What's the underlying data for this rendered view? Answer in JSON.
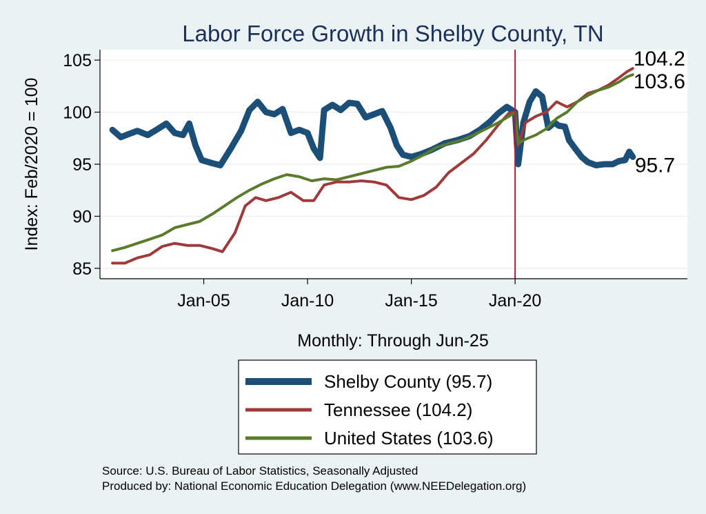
{
  "chart_data": {
    "type": "line",
    "title": "Labor Force Growth in Shelby  County, TN",
    "ylabel": "Index: Feb/2020 = 100",
    "xlabel": "Monthly: Through Jun-25",
    "ylim": [
      84,
      106
    ],
    "yticks": [
      85,
      90,
      95,
      100,
      105
    ],
    "xlim": [
      2000.0,
      2028.3
    ],
    "xticks": [
      {
        "label": "Jan-05",
        "x": 2005.0
      },
      {
        "label": "Jan-10",
        "x": 2010.0
      },
      {
        "label": "Jan-15",
        "x": 2015.0
      },
      {
        "label": "Jan-20",
        "x": 2020.0
      }
    ],
    "reference_line": {
      "x": 2020.0,
      "color": "#c0143c"
    },
    "grid": true,
    "legend_position": "bottom",
    "series": [
      {
        "name": "Shelby  County (95.7)",
        "color": "#1c4f78",
        "end_label": "95.7",
        "points": [
          [
            2000.6,
            98.3
          ],
          [
            2001.0,
            97.6
          ],
          [
            2001.4,
            97.9
          ],
          [
            2001.8,
            98.2
          ],
          [
            2002.3,
            97.8
          ],
          [
            2002.8,
            98.4
          ],
          [
            2003.2,
            98.9
          ],
          [
            2003.6,
            98.0
          ],
          [
            2004.0,
            97.8
          ],
          [
            2004.3,
            98.9
          ],
          [
            2004.6,
            96.8
          ],
          [
            2004.9,
            95.4
          ],
          [
            2005.4,
            95.1
          ],
          [
            2005.8,
            94.9
          ],
          [
            2006.3,
            96.5
          ],
          [
            2006.8,
            98.2
          ],
          [
            2007.2,
            100.2
          ],
          [
            2007.6,
            101.0
          ],
          [
            2008.0,
            100.0
          ],
          [
            2008.4,
            99.8
          ],
          [
            2008.8,
            100.3
          ],
          [
            2009.2,
            98.0
          ],
          [
            2009.6,
            98.3
          ],
          [
            2010.0,
            98.0
          ],
          [
            2010.3,
            96.5
          ],
          [
            2010.6,
            95.6
          ],
          [
            2010.8,
            100.2
          ],
          [
            2011.2,
            100.7
          ],
          [
            2011.6,
            100.2
          ],
          [
            2012.0,
            100.9
          ],
          [
            2012.4,
            100.8
          ],
          [
            2012.8,
            99.5
          ],
          [
            2013.2,
            99.8
          ],
          [
            2013.6,
            100.1
          ],
          [
            2014.0,
            98.5
          ],
          [
            2014.3,
            96.8
          ],
          [
            2014.6,
            95.9
          ],
          [
            2015.0,
            95.7
          ],
          [
            2015.5,
            96.0
          ],
          [
            2016.0,
            96.4
          ],
          [
            2016.6,
            97.0
          ],
          [
            2017.2,
            97.3
          ],
          [
            2017.8,
            97.7
          ],
          [
            2018.3,
            98.3
          ],
          [
            2018.8,
            99.1
          ],
          [
            2019.2,
            99.9
          ],
          [
            2019.6,
            100.5
          ],
          [
            2020.0,
            100.0
          ],
          [
            2020.15,
            95.0
          ],
          [
            2020.4,
            99.0
          ],
          [
            2020.7,
            101.0
          ],
          [
            2021.0,
            102.0
          ],
          [
            2021.3,
            101.5
          ],
          [
            2021.6,
            98.5
          ],
          [
            2021.9,
            99.0
          ],
          [
            2022.1,
            98.7
          ],
          [
            2022.4,
            98.6
          ],
          [
            2022.6,
            97.3
          ],
          [
            2022.9,
            96.5
          ],
          [
            2023.2,
            95.7
          ],
          [
            2023.5,
            95.2
          ],
          [
            2023.9,
            94.9
          ],
          [
            2024.3,
            95.0
          ],
          [
            2024.7,
            95.0
          ],
          [
            2025.0,
            95.3
          ],
          [
            2025.3,
            95.4
          ],
          [
            2025.5,
            96.2
          ],
          [
            2025.67,
            95.7
          ]
        ]
      },
      {
        "name": "Tennessee (104.2)",
        "color": "#a03a3a",
        "end_label": "104.2",
        "points": [
          [
            2000.6,
            85.5
          ],
          [
            2001.2,
            85.5
          ],
          [
            2001.8,
            86.0
          ],
          [
            2002.4,
            86.3
          ],
          [
            2003.0,
            87.1
          ],
          [
            2003.6,
            87.4
          ],
          [
            2004.2,
            87.2
          ],
          [
            2004.8,
            87.2
          ],
          [
            2005.4,
            86.9
          ],
          [
            2005.9,
            86.6
          ],
          [
            2006.5,
            88.4
          ],
          [
            2007.0,
            91.0
          ],
          [
            2007.5,
            91.8
          ],
          [
            2008.0,
            91.5
          ],
          [
            2008.6,
            91.8
          ],
          [
            2009.2,
            92.3
          ],
          [
            2009.8,
            91.5
          ],
          [
            2010.3,
            91.5
          ],
          [
            2010.8,
            93.0
          ],
          [
            2011.4,
            93.3
          ],
          [
            2012.0,
            93.3
          ],
          [
            2012.6,
            93.4
          ],
          [
            2013.2,
            93.3
          ],
          [
            2013.8,
            93.0
          ],
          [
            2014.4,
            91.8
          ],
          [
            2015.0,
            91.6
          ],
          [
            2015.6,
            92.0
          ],
          [
            2016.2,
            92.8
          ],
          [
            2016.8,
            94.2
          ],
          [
            2017.4,
            95.1
          ],
          [
            2018.0,
            96.0
          ],
          [
            2018.6,
            97.3
          ],
          [
            2019.2,
            98.8
          ],
          [
            2019.7,
            99.9
          ],
          [
            2020.0,
            100.0
          ],
          [
            2020.15,
            96.8
          ],
          [
            2020.5,
            99.0
          ],
          [
            2021.0,
            99.6
          ],
          [
            2021.5,
            100.0
          ],
          [
            2022.0,
            101.0
          ],
          [
            2022.5,
            100.5
          ],
          [
            2023.0,
            101.0
          ],
          [
            2023.5,
            101.8
          ],
          [
            2024.0,
            102.1
          ],
          [
            2024.5,
            102.6
          ],
          [
            2025.0,
            103.3
          ],
          [
            2025.4,
            103.9
          ],
          [
            2025.67,
            104.2
          ]
        ]
      },
      {
        "name": "United States (103.6)",
        "color": "#5a7a2c",
        "end_label": "103.6",
        "points": [
          [
            2000.6,
            86.7
          ],
          [
            2001.2,
            87.0
          ],
          [
            2001.8,
            87.4
          ],
          [
            2002.4,
            87.8
          ],
          [
            2003.0,
            88.2
          ],
          [
            2003.6,
            88.9
          ],
          [
            2004.2,
            89.2
          ],
          [
            2004.8,
            89.5
          ],
          [
            2005.4,
            90.2
          ],
          [
            2006.0,
            91.0
          ],
          [
            2006.6,
            91.8
          ],
          [
            2007.2,
            92.5
          ],
          [
            2007.8,
            93.1
          ],
          [
            2008.4,
            93.6
          ],
          [
            2009.0,
            94.0
          ],
          [
            2009.6,
            93.8
          ],
          [
            2010.2,
            93.4
          ],
          [
            2010.8,
            93.6
          ],
          [
            2011.4,
            93.5
          ],
          [
            2012.0,
            93.8
          ],
          [
            2012.6,
            94.1
          ],
          [
            2013.2,
            94.4
          ],
          [
            2013.8,
            94.7
          ],
          [
            2014.4,
            94.8
          ],
          [
            2015.0,
            95.3
          ],
          [
            2015.6,
            95.9
          ],
          [
            2016.2,
            96.6
          ],
          [
            2016.8,
            97.0
          ],
          [
            2017.4,
            97.3
          ],
          [
            2018.0,
            97.8
          ],
          [
            2018.6,
            98.4
          ],
          [
            2019.2,
            99.0
          ],
          [
            2019.7,
            99.6
          ],
          [
            2020.0,
            100.0
          ],
          [
            2020.15,
            97.0
          ],
          [
            2020.5,
            97.4
          ],
          [
            2021.0,
            97.8
          ],
          [
            2021.5,
            98.4
          ],
          [
            2022.0,
            99.4
          ],
          [
            2022.5,
            100.0
          ],
          [
            2023.0,
            101.0
          ],
          [
            2023.5,
            101.6
          ],
          [
            2024.0,
            102.1
          ],
          [
            2024.5,
            102.4
          ],
          [
            2025.0,
            102.9
          ],
          [
            2025.4,
            103.4
          ],
          [
            2025.67,
            103.6
          ]
        ]
      }
    ]
  },
  "source": {
    "line1": "Source: U.S. Bureau of Labor Statistics, Seasonally Adjusted",
    "line2": "Produced by: National Economic Education Delegation (www.NEEDelegation.org)"
  },
  "colors": {
    "background": "#eaf2f3",
    "plot_background": "#ffffff",
    "grid": "#e8eef0",
    "title": "#1b2f5b"
  }
}
